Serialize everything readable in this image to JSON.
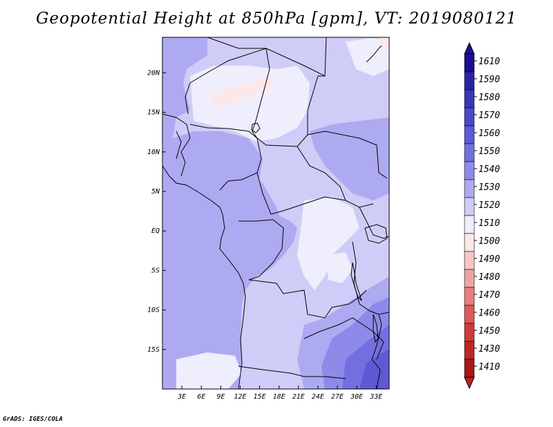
{
  "title": "Geopotential Height at 850hPa [gpm], VT: 2019080121",
  "footer": "GrADS: IGES/COLA",
  "map": {
    "lon_range": [
      0,
      35
    ],
    "lat_range": [
      -20,
      24.5
    ],
    "lon_ticks": [
      {
        "value": 3,
        "label": "3E"
      },
      {
        "value": 6,
        "label": "6E"
      },
      {
        "value": 9,
        "label": "9E"
      },
      {
        "value": 12,
        "label": "12E"
      },
      {
        "value": 15,
        "label": "15E"
      },
      {
        "value": 18,
        "label": "18E"
      },
      {
        "value": 21,
        "label": "21E"
      },
      {
        "value": 24,
        "label": "24E"
      },
      {
        "value": 27,
        "label": "27E"
      },
      {
        "value": 30,
        "label": "30E"
      },
      {
        "value": 33,
        "label": "33E"
      }
    ],
    "lat_ticks": [
      {
        "value": 20,
        "label": "20N"
      },
      {
        "value": 15,
        "label": "15N"
      },
      {
        "value": 10,
        "label": "10N"
      },
      {
        "value": 5,
        "label": "5N"
      },
      {
        "value": 0,
        "label": "EQ"
      },
      {
        "value": -5,
        "label": "5S"
      },
      {
        "value": -10,
        "label": "10S"
      },
      {
        "value": -15,
        "label": "15S"
      }
    ]
  },
  "colorbar": {
    "levels": [
      {
        "label": "1610",
        "color": "#1a0f8f"
      },
      {
        "label": "1590",
        "color": "#2a22a6"
      },
      {
        "label": "1580",
        "color": "#3a35b8"
      },
      {
        "label": "1570",
        "color": "#4b48c8"
      },
      {
        "label": "1560",
        "color": "#5d5ad6"
      },
      {
        "label": "1550",
        "color": "#736fe0"
      },
      {
        "label": "1540",
        "color": "#8e8ae9"
      },
      {
        "label": "1530",
        "color": "#aeaaf2"
      },
      {
        "label": "1520",
        "color": "#cfcdf7"
      },
      {
        "label": "1510",
        "color": "#eeeefd"
      },
      {
        "label": "1500",
        "color": "#fde8e8"
      },
      {
        "label": "1490",
        "color": "#f7c6c6"
      },
      {
        "label": "1480",
        "color": "#f0a2a2"
      },
      {
        "label": "1470",
        "color": "#e67e7e"
      },
      {
        "label": "1460",
        "color": "#dc5a5a"
      },
      {
        "label": "1450",
        "color": "#d03c3c"
      },
      {
        "label": "1430",
        "color": "#c02626"
      },
      {
        "label": "1410",
        "color": "#a81818"
      }
    ],
    "under_color": "#c02020"
  }
}
